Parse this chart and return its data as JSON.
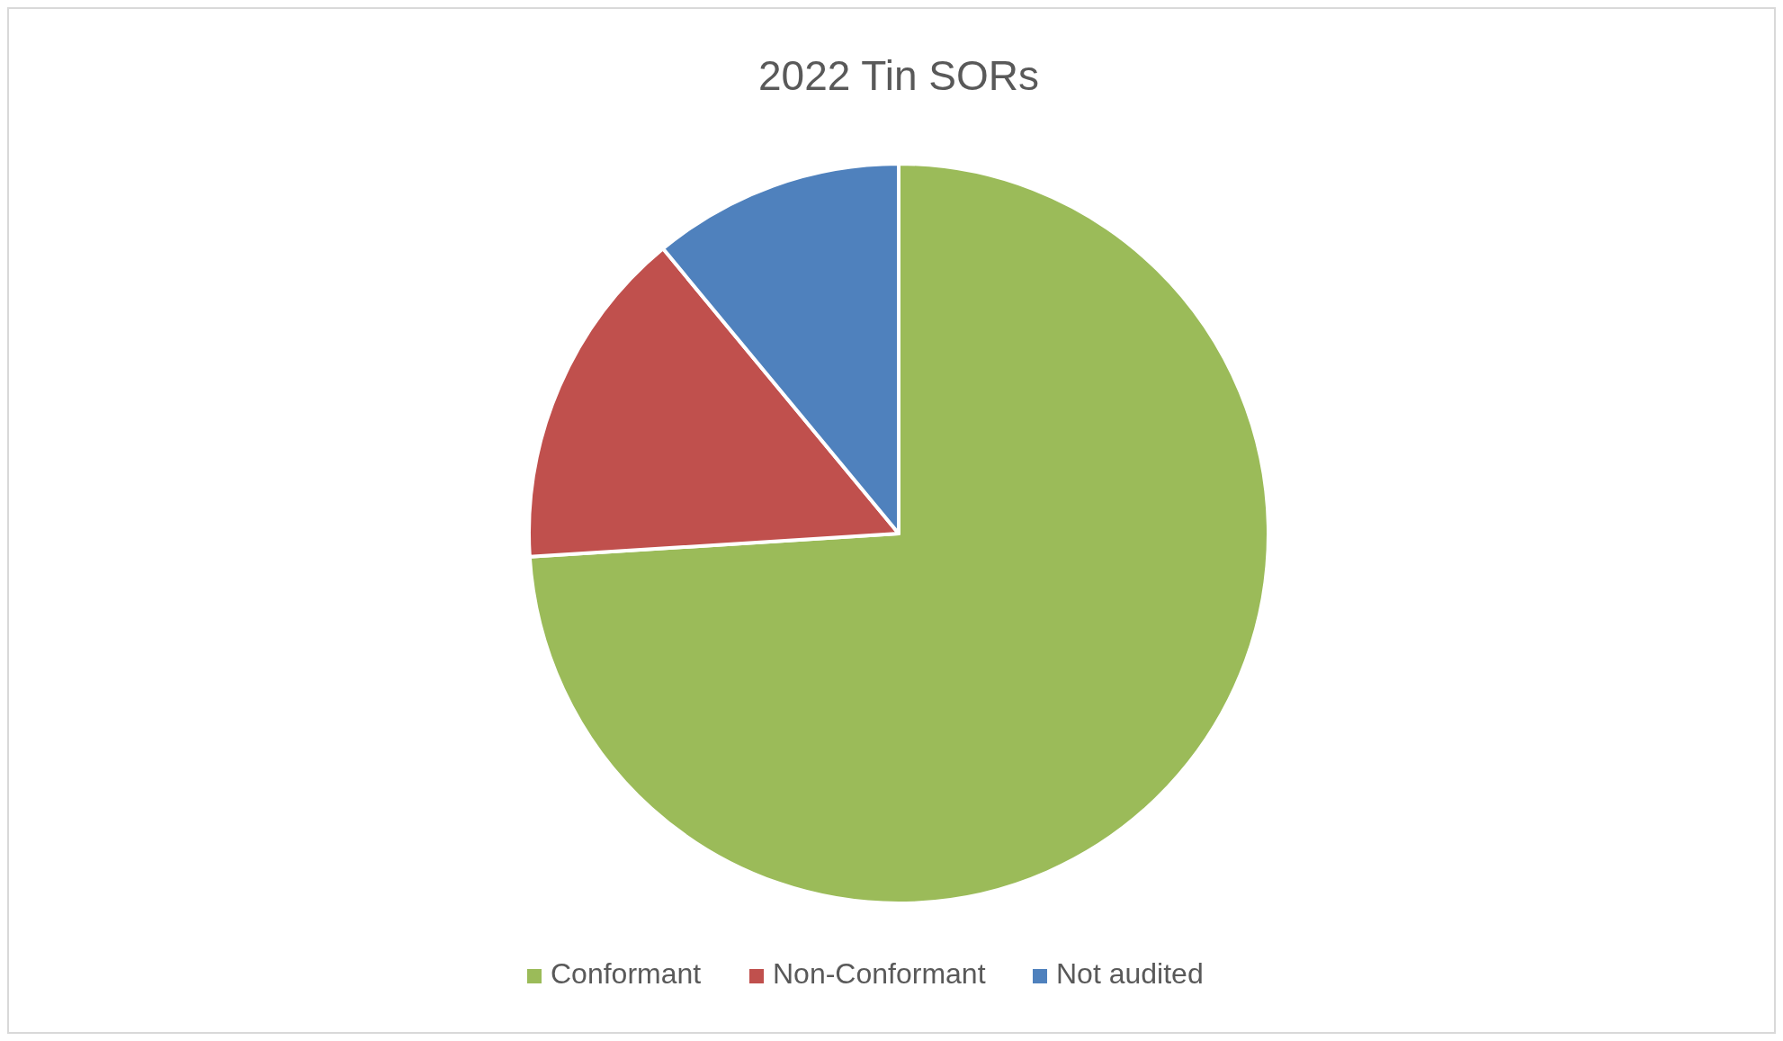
{
  "chart_data": {
    "type": "pie",
    "title": "2022 Tin SORs",
    "categories": [
      "Conformant",
      "Non-Conformant",
      "Not audited"
    ],
    "values": [
      74,
      15,
      11
    ],
    "colors": [
      "#9bbb59",
      "#c0504d",
      "#4f81bd"
    ],
    "legend": "bottom"
  }
}
